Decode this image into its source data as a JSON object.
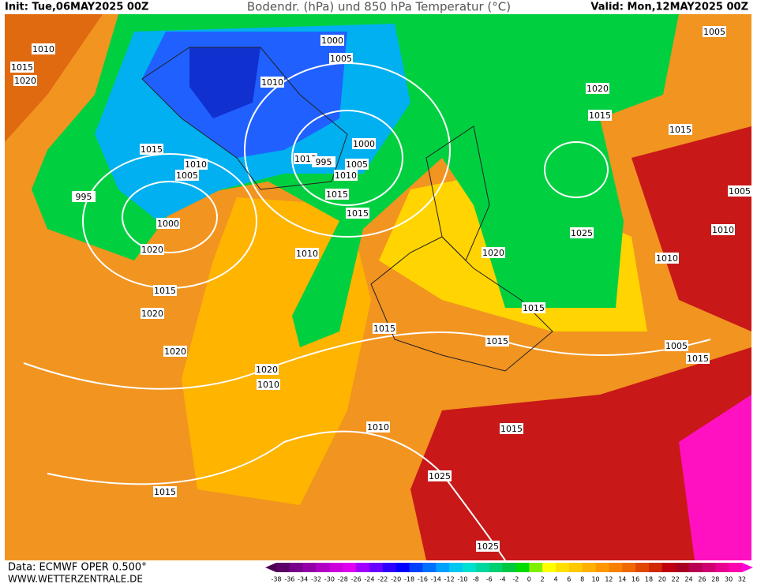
{
  "header": {
    "init": "Init: Tue,06MAY2025 00Z",
    "title": "Bodendr. (hPa) und 850 hPa Temperatur (°C)",
    "valid": "Valid: Mon,12MAY2025 00Z"
  },
  "footer": {
    "data": "Data: ECMWF OPER 0.500°",
    "site": "WWW.WETTERZENTRALE.DE"
  },
  "isobar_labels": [
    "1010",
    "1015",
    "1020",
    "1000",
    "1005",
    "1010",
    "1015",
    "1010",
    "1005",
    "1015",
    "995",
    "1000",
    "1005",
    "1010",
    "1015",
    "1015",
    "995",
    "1000",
    "1020",
    "1010",
    "1015",
    "1020",
    "1020",
    "1020",
    "1010",
    "1015",
    "1015",
    "1010",
    "1015",
    "1025",
    "1015",
    "1025",
    "1020",
    "1015",
    "1025",
    "1020",
    "1015",
    "1015",
    "1005",
    "1005",
    "1010",
    "1010",
    "1005",
    "1015"
  ],
  "legend": {
    "ticks": [
      -38,
      -36,
      -34,
      -32,
      -30,
      -28,
      -26,
      -24,
      -22,
      -20,
      -18,
      -16,
      -14,
      -12,
      -10,
      -8,
      -6,
      -4,
      -2,
      0,
      2,
      4,
      6,
      8,
      10,
      12,
      14,
      16,
      18,
      20,
      22,
      24,
      26,
      28,
      30,
      32
    ],
    "colors": [
      "#4b0050",
      "#5a0066",
      "#78008c",
      "#9400a8",
      "#b000c4",
      "#cc00dc",
      "#e000f0",
      "#a000ff",
      "#6a00ff",
      "#3000ff",
      "#0000ff",
      "#0040ff",
      "#0070ff",
      "#00a0ff",
      "#00c8f0",
      "#00e0d0",
      "#00d8a0",
      "#00d070",
      "#00c840",
      "#00dc00",
      "#80f000",
      "#ffff00",
      "#ffe000",
      "#ffc800",
      "#ffb000",
      "#ff9800",
      "#f88000",
      "#f06800",
      "#e04800",
      "#d02800",
      "#c00010",
      "#a80020",
      "#b80050",
      "#d00070",
      "#e80090",
      "#ff00b0",
      "#ff00d8"
    ]
  }
}
